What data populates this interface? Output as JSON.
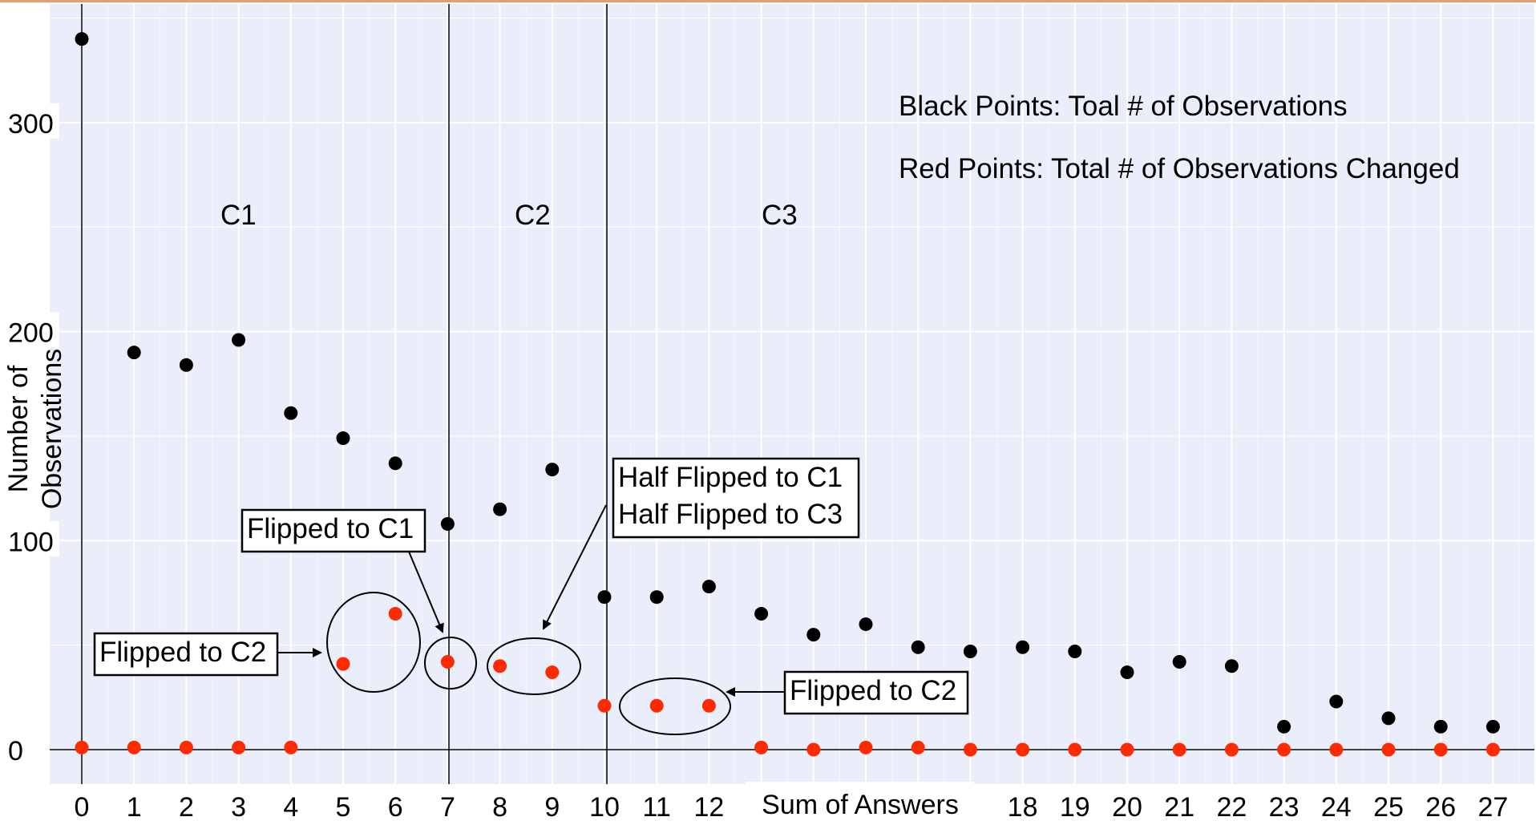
{
  "chart_data": {
    "type": "scatter",
    "xlabel": "Sum of Answers",
    "ylabel": [
      "Number of",
      "Observations"
    ],
    "x_ticks": [
      0,
      1,
      2,
      3,
      4,
      5,
      6,
      7,
      8,
      9,
      10,
      11,
      12,
      18,
      19,
      20,
      21,
      22,
      23,
      24,
      25,
      26,
      27
    ],
    "y_ticks": [
      0,
      100,
      200,
      300
    ],
    "ylim": [
      -15,
      355
    ],
    "grid": true,
    "legend": [
      "Black Points: Toal # of Observations",
      "Red Points: Total # of Observations Changed"
    ],
    "region_labels": [
      "C1",
      "C2",
      "C3"
    ],
    "series": [
      {
        "name": "Black Points: Toal # of Observations",
        "color": "#000000",
        "x": [
          0,
          1,
          2,
          3,
          4,
          5,
          6,
          7,
          8,
          9,
          10,
          11,
          12,
          13,
          14,
          15,
          16,
          17,
          18,
          19,
          20,
          21,
          22,
          23,
          24,
          25,
          26,
          27
        ],
        "y": [
          340,
          190,
          184,
          196,
          161,
          149,
          137,
          108,
          115,
          134,
          73,
          73,
          78,
          65,
          55,
          60,
          49,
          47,
          49,
          47,
          37,
          42,
          40,
          11,
          23,
          15,
          11,
          11
        ]
      },
      {
        "name": "Red Points: Total # of Observations Changed",
        "color": "#ff2a00",
        "x": [
          0,
          1,
          2,
          3,
          4,
          5,
          6,
          7,
          8,
          9,
          10,
          11,
          12,
          13,
          14,
          15,
          16,
          17,
          18,
          19,
          20,
          21,
          22,
          23,
          24,
          25,
          26,
          27
        ],
        "y": [
          1,
          1,
          1,
          1,
          1,
          41,
          65,
          42,
          40,
          37,
          21,
          21,
          21,
          1,
          0,
          1,
          1,
          0,
          0,
          0,
          0,
          0,
          0,
          0,
          0,
          0,
          0,
          0
        ]
      }
    ],
    "annotations": [
      {
        "text": [
          "Flipped to C2"
        ]
      },
      {
        "text": [
          "Flipped to C1"
        ]
      },
      {
        "text": [
          "Half Flipped to C1",
          "Half Flipped to C3"
        ]
      },
      {
        "text": [
          "Flipped to C2"
        ]
      }
    ]
  }
}
